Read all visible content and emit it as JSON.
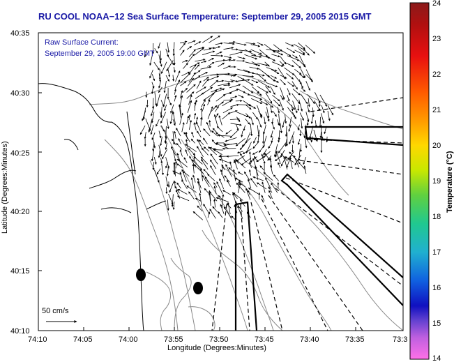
{
  "title": "RU COOL  NOAA−12  Sea Surface Temperature:  September 29, 2005 2015 GMT",
  "current_label": {
    "line1": "Raw Surface Current:",
    "line2": "September 29, 2005 19:00 GMT"
  },
  "scale_bar": {
    "label": "50 cm/s"
  },
  "map": {
    "xlabel": "Longitude (Degrees:Minutes)",
    "ylabel": "Latitude (Degrees:Minutes)",
    "x_ticks": [
      "74:10",
      "74:05",
      "74:00",
      "73:55",
      "73:50",
      "73:45",
      "73:40",
      "73:35",
      "73:3"
    ],
    "y_ticks": [
      "40:35",
      "40:30",
      "40:25",
      "40:20",
      "40:15",
      "40:10"
    ],
    "land_color": "#ffffff",
    "contour_color": "#888888",
    "coast_color": "#000000",
    "vector_color": "#000000"
  },
  "colorbar": {
    "title": "Temperature (°C)",
    "min": 14,
    "max": 24,
    "ticks": [
      "24",
      "23",
      "22",
      "21",
      "20",
      "19",
      "18",
      "17",
      "16",
      "15",
      "14"
    ]
  }
}
